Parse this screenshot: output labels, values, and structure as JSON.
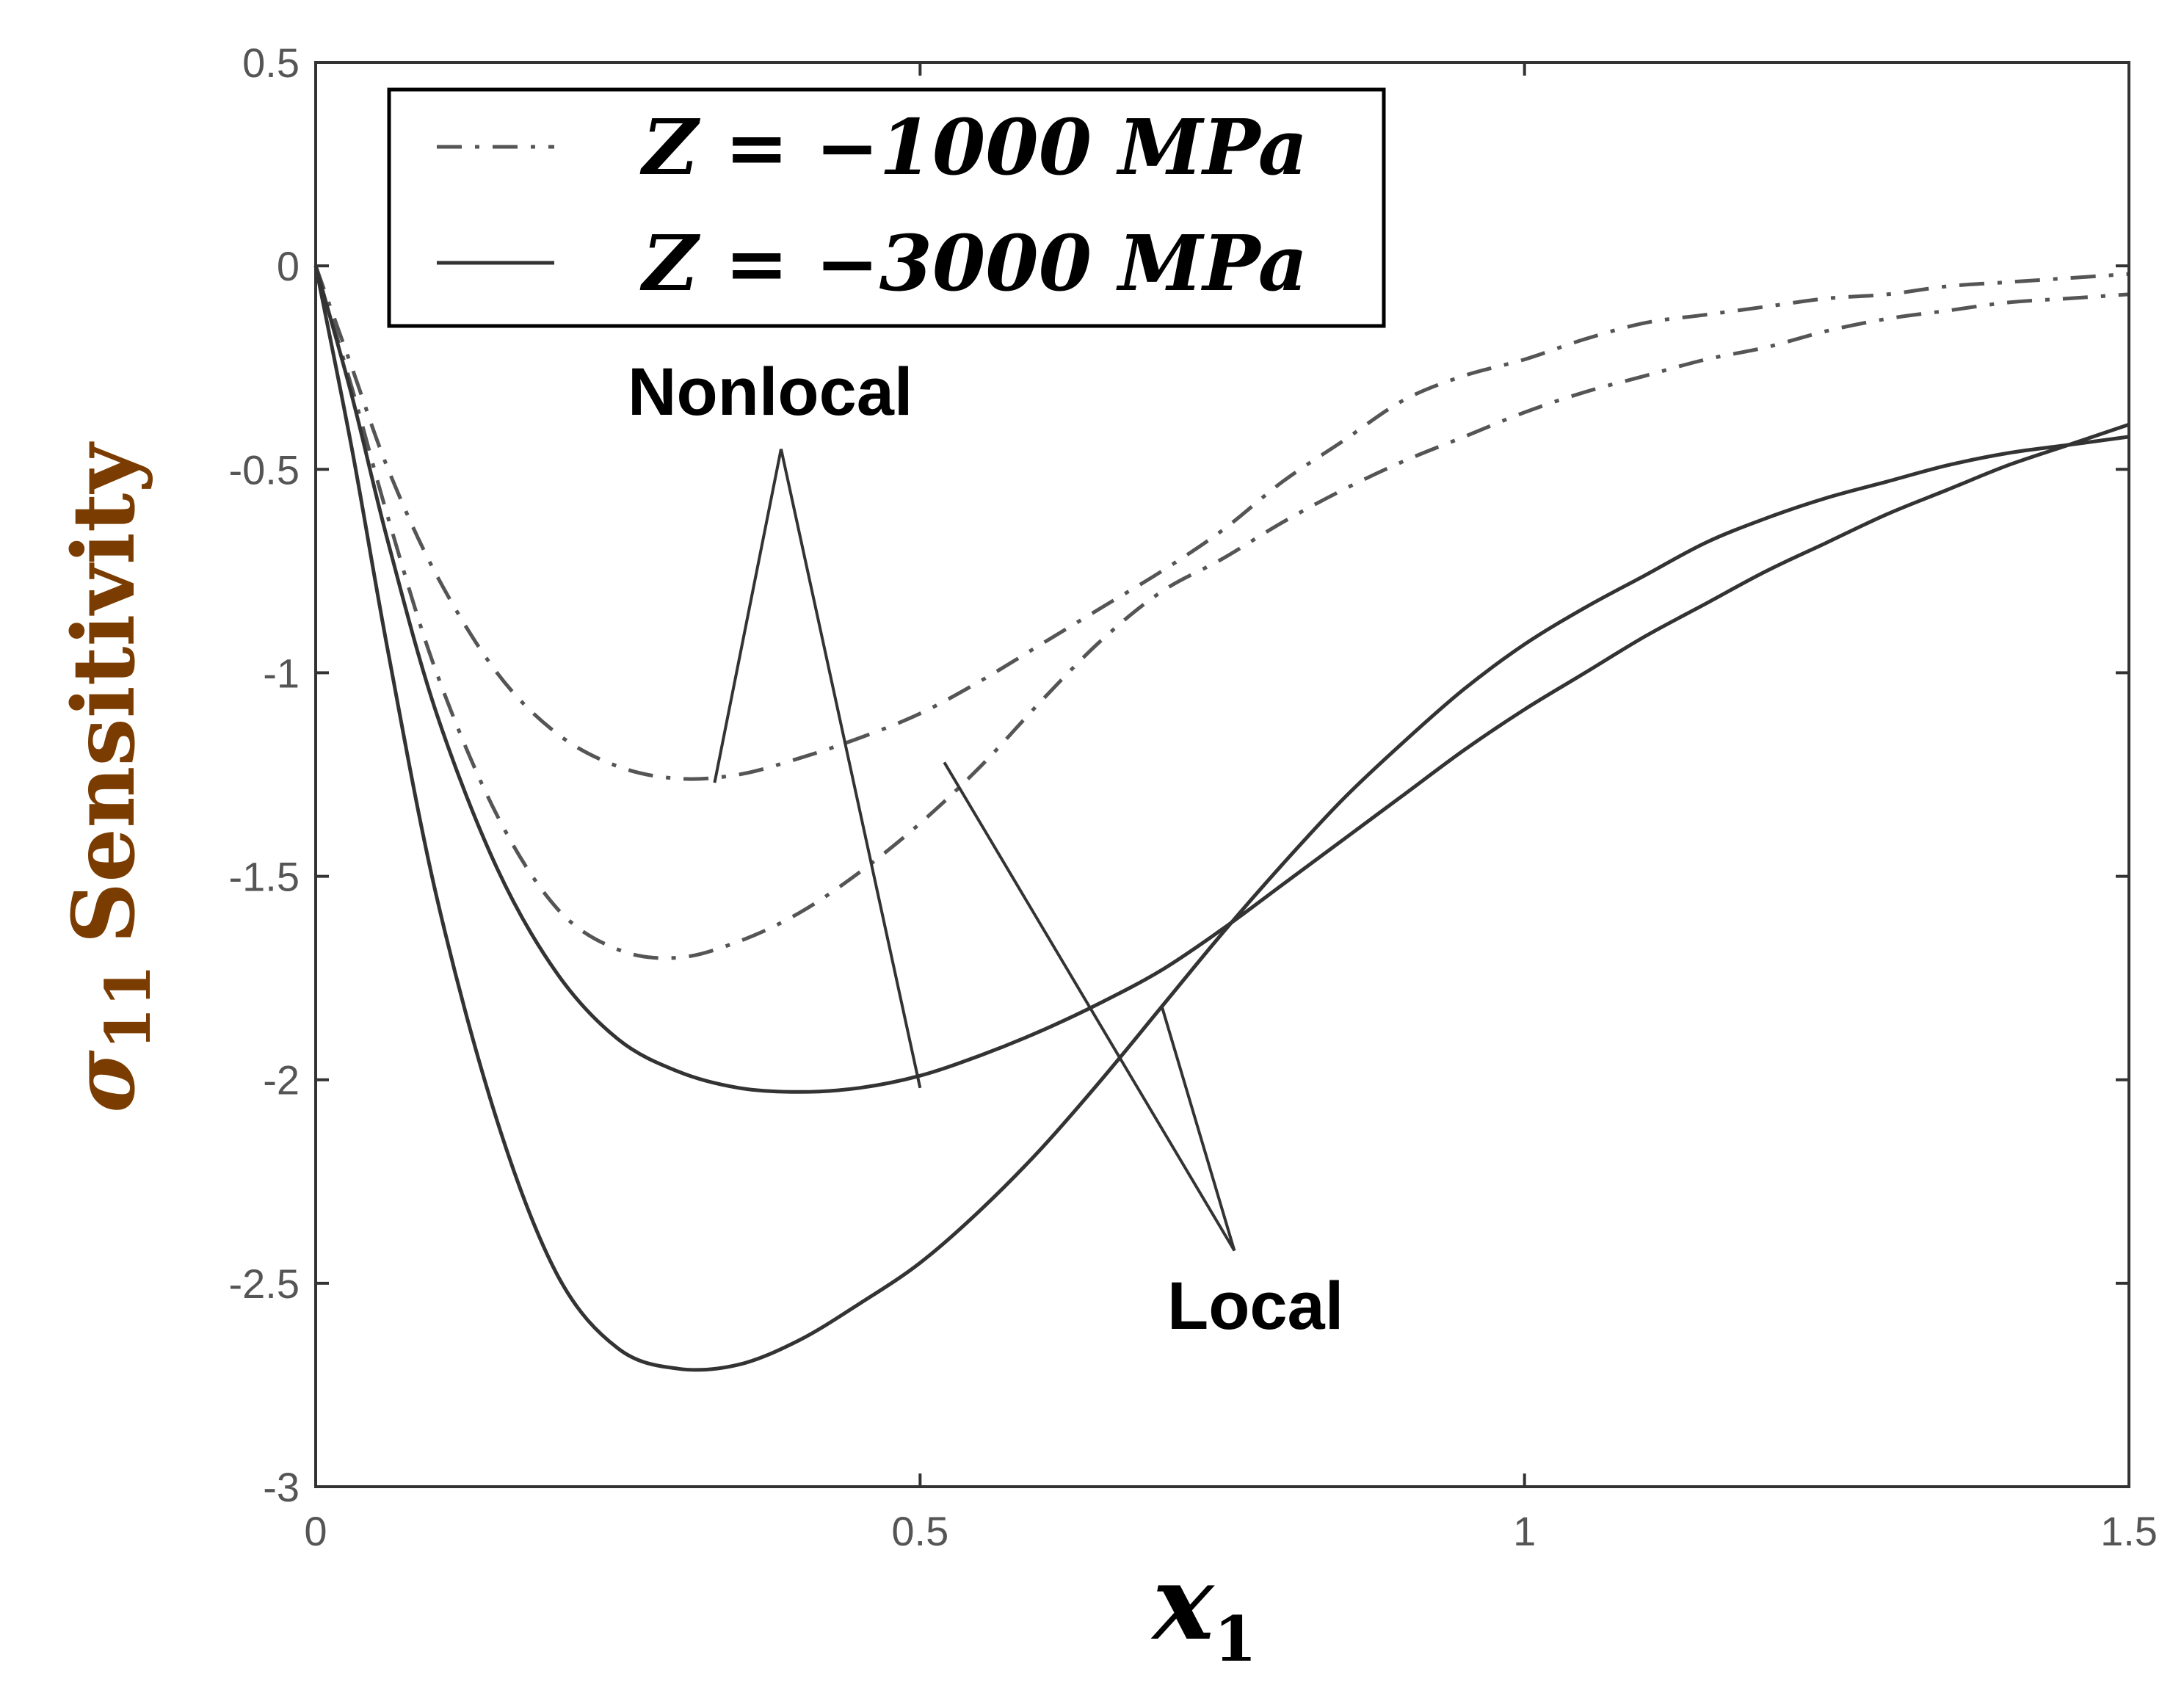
{
  "chart_data": {
    "type": "line",
    "title": "",
    "xlabel": "x",
    "xlabel_sub": "1",
    "ylabel_symbol": "σ",
    "ylabel_sub": "11",
    "ylabel_word": "Sensitivity",
    "ylabel_color": "#7a3c00",
    "xlim": [
      0,
      1.5
    ],
    "ylim": [
      -3,
      0.5
    ],
    "xticks": [
      0,
      0.5,
      1,
      1.5
    ],
    "xtick_labels": [
      "0",
      "0.5",
      "1",
      "1.5"
    ],
    "yticks": [
      0.5,
      0,
      -0.5,
      -1,
      -1.5,
      -2,
      -2.5,
      -3
    ],
    "ytick_labels": [
      "0.5",
      "0",
      "-0.5",
      "-1",
      "-1.5",
      "-2",
      "-2.5",
      "-3"
    ],
    "grid": false,
    "legend_position": "top-left",
    "legend": [
      {
        "label": "Z = −1000 MPa",
        "style": "dashdot"
      },
      {
        "label": "Z = −3000 MPa",
        "style": "solid"
      }
    ],
    "series": [
      {
        "name": "Z = −1000 MPa Nonlocal",
        "style": "dashdot",
        "x": [
          0,
          0.03,
          0.06,
          0.1,
          0.15,
          0.2,
          0.25,
          0.3,
          0.35,
          0.4,
          0.45,
          0.5,
          0.55,
          0.6,
          0.65,
          0.7,
          0.75,
          0.8,
          0.85,
          0.9,
          0.95,
          1.0,
          1.05,
          1.1,
          1.15,
          1.2,
          1.25,
          1.3,
          1.35,
          1.4,
          1.45,
          1.5
        ],
        "y": [
          0,
          -0.25,
          -0.5,
          -0.76,
          -1.0,
          -1.15,
          -1.23,
          -1.26,
          -1.25,
          -1.21,
          -1.16,
          -1.1,
          -1.02,
          -0.93,
          -0.84,
          -0.75,
          -0.65,
          -0.53,
          -0.43,
          -0.33,
          -0.27,
          -0.23,
          -0.18,
          -0.14,
          -0.12,
          -0.1,
          -0.08,
          -0.07,
          -0.05,
          -0.04,
          -0.03,
          -0.02
        ]
      },
      {
        "name": "Z = −1000 MPa Local",
        "style": "dashdot",
        "x": [
          0,
          0.03,
          0.06,
          0.1,
          0.15,
          0.2,
          0.25,
          0.3,
          0.35,
          0.4,
          0.45,
          0.5,
          0.55,
          0.6,
          0.65,
          0.7,
          0.75,
          0.8,
          0.85,
          0.9,
          0.95,
          1.0,
          1.05,
          1.1,
          1.15,
          1.2,
          1.25,
          1.3,
          1.35,
          1.4,
          1.45,
          1.5
        ],
        "y": [
          0,
          -0.3,
          -0.62,
          -1.0,
          -1.35,
          -1.58,
          -1.68,
          -1.7,
          -1.66,
          -1.59,
          -1.49,
          -1.37,
          -1.23,
          -1.07,
          -0.92,
          -0.8,
          -0.72,
          -0.63,
          -0.55,
          -0.48,
          -0.42,
          -0.36,
          -0.31,
          -0.27,
          -0.23,
          -0.2,
          -0.16,
          -0.13,
          -0.11,
          -0.09,
          -0.08,
          -0.07
        ]
      },
      {
        "name": "Z = −3000 MPa Nonlocal",
        "style": "solid",
        "x": [
          0,
          0.03,
          0.06,
          0.1,
          0.15,
          0.2,
          0.25,
          0.3,
          0.35,
          0.4,
          0.45,
          0.5,
          0.55,
          0.6,
          0.65,
          0.7,
          0.75,
          0.8,
          0.85,
          0.9,
          0.95,
          1.0,
          1.05,
          1.1,
          1.15,
          1.2,
          1.25,
          1.3,
          1.35,
          1.4,
          1.45,
          1.5
        ],
        "y": [
          0,
          -0.32,
          -0.68,
          -1.1,
          -1.48,
          -1.74,
          -1.9,
          -1.98,
          -2.02,
          -2.03,
          -2.02,
          -1.99,
          -1.94,
          -1.88,
          -1.81,
          -1.73,
          -1.63,
          -1.52,
          -1.41,
          -1.3,
          -1.19,
          -1.09,
          -1.0,
          -0.91,
          -0.83,
          -0.75,
          -0.68,
          -0.61,
          -0.55,
          -0.49,
          -0.44,
          -0.39
        ]
      },
      {
        "name": "Z = −3000 MPa Local",
        "style": "solid",
        "x": [
          0,
          0.03,
          0.06,
          0.1,
          0.15,
          0.2,
          0.25,
          0.3,
          0.35,
          0.4,
          0.45,
          0.5,
          0.55,
          0.6,
          0.65,
          0.7,
          0.75,
          0.8,
          0.85,
          0.9,
          0.95,
          1.0,
          1.05,
          1.1,
          1.15,
          1.2,
          1.25,
          1.3,
          1.35,
          1.4,
          1.45,
          1.5
        ],
        "y": [
          0,
          -0.45,
          -0.95,
          -1.55,
          -2.1,
          -2.48,
          -2.66,
          -2.71,
          -2.7,
          -2.64,
          -2.55,
          -2.45,
          -2.32,
          -2.17,
          -2.0,
          -1.82,
          -1.64,
          -1.47,
          -1.31,
          -1.17,
          -1.04,
          -0.93,
          -0.84,
          -0.76,
          -0.68,
          -0.62,
          -0.57,
          -0.53,
          -0.49,
          -0.46,
          -0.44,
          -0.42
        ]
      }
    ],
    "annotations": [
      {
        "text": "Nonlocal",
        "anchor_x": 0.385,
        "anchor_y": -0.45,
        "targets": [
          [
            0.33,
            -1.27
          ],
          [
            0.5,
            -2.02
          ]
        ]
      },
      {
        "text": "Local",
        "anchor_x": 0.76,
        "anchor_y": -2.42,
        "targets": [
          [
            0.52,
            -1.22
          ],
          [
            0.7,
            -1.82
          ]
        ]
      }
    ]
  }
}
